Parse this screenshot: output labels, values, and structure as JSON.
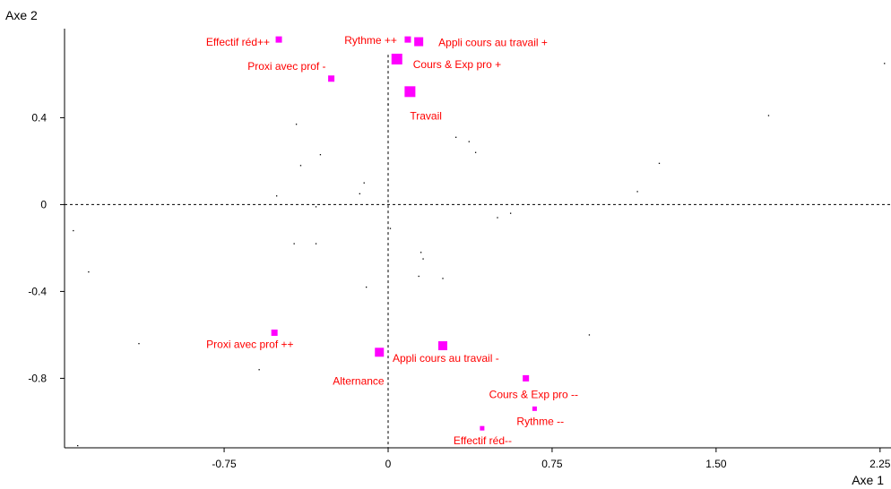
{
  "chart_data": {
    "type": "scatter",
    "xlabel": "Axe 1",
    "ylabel": "Axe 2",
    "xlim": [
      -1.48,
      2.3
    ],
    "ylim": [
      -1.12,
      0.81
    ],
    "x_ticks": [
      -0.75,
      0,
      0.75,
      1.5,
      2.25
    ],
    "x_tick_labels": [
      "-0.75",
      "0",
      "0.75",
      "1.50",
      "2.25"
    ],
    "y_ticks": [
      -0.8,
      -0.4,
      0,
      0.4
    ],
    "y_tick_labels": [
      "-0.8",
      "-0.4",
      "0",
      "0.4"
    ],
    "reference_lines": "dashed lines at x = 0 and y = 0",
    "grid": false,
    "colors": {
      "category": "#ff00ff",
      "label": "#ff0000",
      "individual": "#000000"
    },
    "categories": [
      {
        "label": "Effectif réd++",
        "x": -0.5,
        "y": 0.76,
        "weight": 1
      },
      {
        "label": "Rythme ++",
        "x": 0.09,
        "y": 0.76,
        "weight": 1
      },
      {
        "label": "Appli cours au travail +",
        "x": 0.14,
        "y": 0.75,
        "weight": 2
      },
      {
        "label": "Cours & Exp pro +",
        "x": 0.04,
        "y": 0.67,
        "weight": 3
      },
      {
        "label": "Proxi avec prof -",
        "x": -0.26,
        "y": 0.58,
        "weight": 1
      },
      {
        "label": "Travail",
        "x": 0.1,
        "y": 0.52,
        "weight": 3
      },
      {
        "label": "Proxi avec prof ++",
        "x": -0.52,
        "y": -0.59,
        "weight": 1
      },
      {
        "label": "Alternance",
        "x": -0.04,
        "y": -0.68,
        "weight": 2
      },
      {
        "label": "Appli cours au travail -",
        "x": 0.25,
        "y": -0.65,
        "weight": 2
      },
      {
        "label": "Cours & Exp pro --",
        "x": 0.63,
        "y": -0.8,
        "weight": 1
      },
      {
        "label": "Rythme --",
        "x": 0.67,
        "y": -0.94,
        "weight": 0
      },
      {
        "label": "Effectif réd--",
        "x": 0.43,
        "y": -1.03,
        "weight": 0
      }
    ],
    "individuals": [
      {
        "x": -1.44,
        "y": -0.12
      },
      {
        "x": -1.37,
        "y": -0.31
      },
      {
        "x": -1.14,
        "y": -0.64
      },
      {
        "x": -1.42,
        "y": -1.11
      },
      {
        "x": -0.59,
        "y": -0.76
      },
      {
        "x": -0.51,
        "y": 0.04
      },
      {
        "x": -0.42,
        "y": 0.37
      },
      {
        "x": -0.4,
        "y": 0.18
      },
      {
        "x": -0.31,
        "y": 0.23
      },
      {
        "x": -0.33,
        "y": -0.01
      },
      {
        "x": -0.43,
        "y": -0.18
      },
      {
        "x": -0.33,
        "y": -0.18
      },
      {
        "x": -0.11,
        "y": 0.1
      },
      {
        "x": -0.13,
        "y": 0.05
      },
      {
        "x": -0.1,
        "y": -0.38
      },
      {
        "x": 0.0,
        "y": 0.46
      },
      {
        "x": 0.01,
        "y": -0.11
      },
      {
        "x": 0.15,
        "y": -0.22
      },
      {
        "x": 0.16,
        "y": -0.25
      },
      {
        "x": 0.14,
        "y": -0.33
      },
      {
        "x": 0.25,
        "y": -0.34
      },
      {
        "x": 0.31,
        "y": 0.31
      },
      {
        "x": 0.37,
        "y": 0.29
      },
      {
        "x": 0.4,
        "y": 0.24
      },
      {
        "x": 0.5,
        "y": -0.06
      },
      {
        "x": 0.56,
        "y": -0.04
      },
      {
        "x": 0.92,
        "y": -0.6
      },
      {
        "x": 1.14,
        "y": 0.06
      },
      {
        "x": 1.24,
        "y": 0.19
      },
      {
        "x": 1.74,
        "y": 0.41
      },
      {
        "x": 2.27,
        "y": 0.65
      }
    ]
  }
}
